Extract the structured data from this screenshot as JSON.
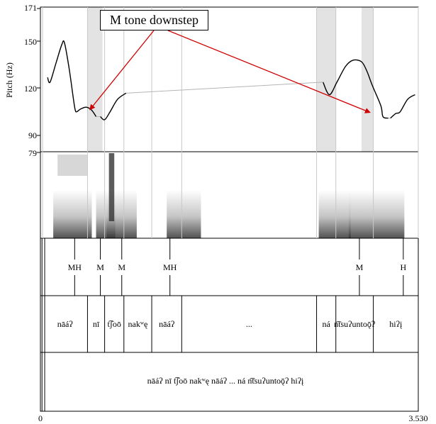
{
  "chart_data": {
    "type": "line",
    "title": "",
    "ylabel": "Pitch (Hz)",
    "xlabel": "",
    "ylim": [
      90,
      171
    ],
    "yticks": [
      "171",
      "150",
      "120",
      "90"
    ],
    "spectro_top_label": "79",
    "time_range": {
      "start": "0",
      "end": "3.530"
    },
    "grid": false,
    "series": [
      {
        "segments": [
          [
            [
              0.067,
              127
            ],
            [
              0.09,
              124
            ],
            [
              0.145,
              136
            ],
            [
              0.2,
              148
            ],
            [
              0.225,
              149
            ],
            [
              0.27,
              132
            ],
            [
              0.32,
              108
            ],
            [
              0.34,
              105
            ]
          ],
          [
            [
              0.34,
              105
            ],
            [
              0.38,
              107
            ],
            [
              0.43,
              108
            ],
            [
              0.48,
              106
            ],
            [
              0.52,
              102
            ]
          ],
          [
            [
              0.56,
              102
            ],
            [
              0.6,
              100
            ],
            [
              0.65,
              105
            ],
            [
              0.72,
              113
            ],
            [
              0.8,
              117
            ]
          ],
          [
            [
              2.64,
              124
            ],
            [
              2.7,
              116
            ],
            [
              2.77,
              124
            ],
            [
              2.85,
              134
            ],
            [
              2.92,
              138
            ],
            [
              3.0,
              137
            ],
            [
              3.05,
              131
            ],
            [
              3.1,
              122
            ],
            [
              3.18,
              109
            ],
            [
              3.2,
              102
            ],
            [
              3.25,
              101
            ]
          ],
          [
            [
              3.27,
              101
            ],
            [
              3.32,
              104
            ],
            [
              3.36,
              105
            ],
            [
              3.43,
              113
            ],
            [
              3.5,
              116
            ]
          ]
        ]
      }
    ],
    "shaded_regions": [
      [
        0.44,
        0.58
      ],
      [
        2.58,
        2.76
      ],
      [
        3.0,
        3.11
      ]
    ],
    "tone_tier": [
      {
        "t": 0.32,
        "label": "MH"
      },
      {
        "t": 0.56,
        "label": "M"
      },
      {
        "t": 0.76,
        "label": "M"
      },
      {
        "t": 1.21,
        "label": "MH"
      },
      {
        "t": 2.98,
        "label": "M"
      },
      {
        "t": 3.39,
        "label": "H"
      }
    ],
    "word_tier": [
      {
        "start": 0.02,
        "end": 0.44,
        "label": "nāáʔ"
      },
      {
        "start": 0.44,
        "end": 0.6,
        "label": "nī"
      },
      {
        "start": 0.6,
        "end": 0.78,
        "label": "t͡ʃoō"
      },
      {
        "start": 0.78,
        "end": 1.04,
        "label": "nakʷę"
      },
      {
        "start": 1.04,
        "end": 1.32,
        "label": "nāáʔ"
      },
      {
        "start": 1.32,
        "end": 2.58,
        "label": "..."
      },
      {
        "start": 2.58,
        "end": 2.76,
        "label": "ná"
      },
      {
        "start": 2.76,
        "end": 3.11,
        "label": "n͡tsuʔuntoǭʔ"
      },
      {
        "start": 3.11,
        "end": 3.53,
        "label": "hiʔį"
      }
    ],
    "sentence_tier": "nāáʔ nī t͡ʃoō nakʷę nāáʔ ... ná n͡tsuʔuntoǭʔ hiʔį"
  },
  "annotation": {
    "text": "M tone downstep",
    "targets": [
      {
        "t": 0.44,
        "hz": 105
      },
      {
        "t": 3.1,
        "hz": 103
      }
    ]
  }
}
